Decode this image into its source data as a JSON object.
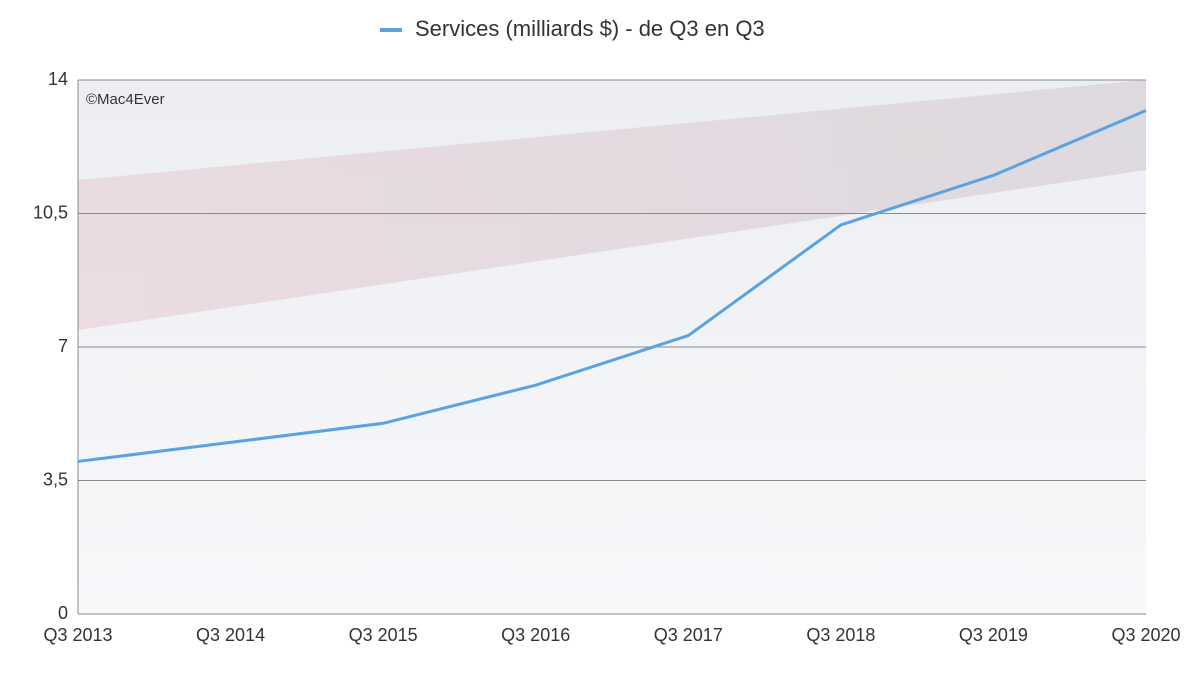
{
  "chart_data": {
    "type": "line",
    "title": "Services (milliards $) - de Q3 en Q3",
    "annotation": "©Mac4Ever",
    "categories": [
      "Q3 2013",
      "Q3 2014",
      "Q3 2015",
      "Q3 2016",
      "Q3 2017",
      "Q3 2018",
      "Q3 2019",
      "Q3 2020"
    ],
    "series": [
      {
        "name": "Services (milliards $) - de Q3 en Q3",
        "color": "#5ba3e0",
        "values": [
          4.0,
          4.5,
          5.0,
          6.0,
          7.3,
          10.2,
          11.5,
          13.2
        ]
      }
    ],
    "ylim": [
      0,
      14
    ],
    "yticks": [
      0,
      {
        "value": 3.5,
        "label": "3,5"
      },
      7,
      {
        "value": 10.5,
        "label": "10,5"
      },
      14
    ],
    "grid": true
  }
}
